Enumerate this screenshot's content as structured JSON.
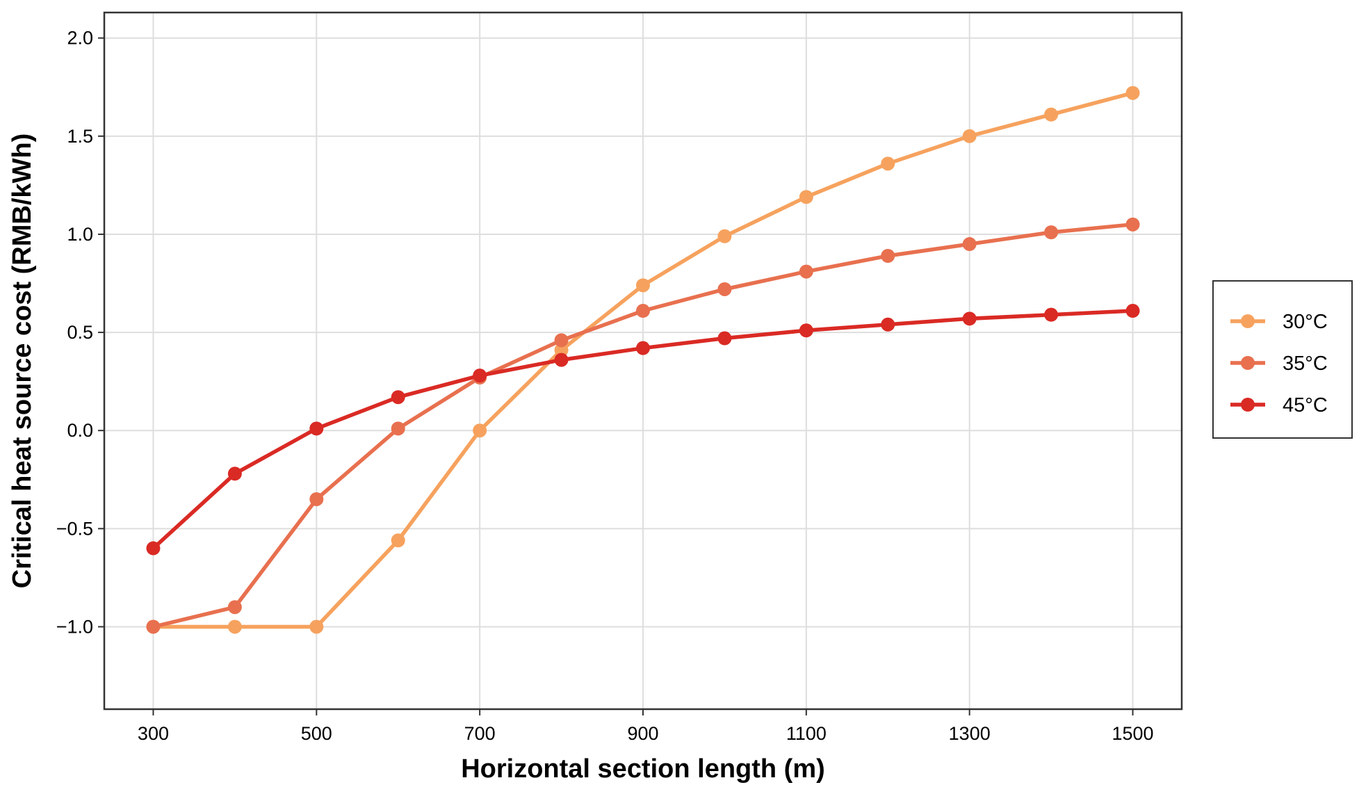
{
  "chart_data": {
    "type": "line",
    "title": "",
    "xlabel": "Horizontal section length (m)",
    "ylabel": "Critical heat source cost (RMB/kWh)",
    "x": [
      300,
      400,
      500,
      600,
      700,
      800,
      900,
      1000,
      1100,
      1200,
      1300,
      1400,
      1500
    ],
    "xlim": [
      240,
      1560
    ],
    "ylim": [
      -1.42,
      2.13
    ],
    "x_ticks": [
      "300",
      "500",
      "700",
      "900",
      "1100",
      "1300",
      "1500"
    ],
    "x_tick_values": [
      300,
      500,
      700,
      900,
      1100,
      1300,
      1500
    ],
    "y_ticks": [
      "−1.0",
      "−0.5",
      "0.0",
      "0.5",
      "1.0",
      "1.5",
      "2.0"
    ],
    "y_tick_values": [
      -1.0,
      -0.5,
      0.0,
      0.5,
      1.0,
      1.5,
      2.0
    ],
    "grid": true,
    "legend_position": "right",
    "series": [
      {
        "name": "30°C",
        "color": "#F6A25E",
        "values": [
          -1.0,
          -1.0,
          -1.0,
          -0.56,
          0.0,
          0.41,
          0.74,
          0.99,
          1.19,
          1.36,
          1.5,
          1.61,
          1.72
        ]
      },
      {
        "name": "35°C",
        "color": "#E8704F",
        "values": [
          -1.0,
          -0.9,
          -0.35,
          0.01,
          0.27,
          0.46,
          0.61,
          0.72,
          0.81,
          0.89,
          0.95,
          1.01,
          1.05
        ]
      },
      {
        "name": "45°C",
        "color": "#DA2A24",
        "values": [
          -0.6,
          -0.22,
          0.01,
          0.17,
          0.28,
          0.36,
          0.42,
          0.47,
          0.51,
          0.54,
          0.57,
          0.59,
          0.61
        ]
      }
    ]
  }
}
